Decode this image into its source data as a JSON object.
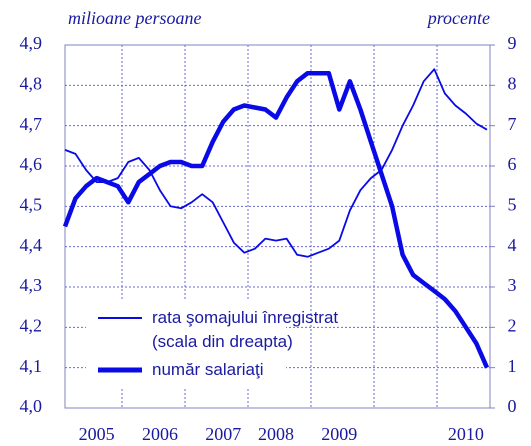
{
  "chart_data": {
    "type": "line",
    "y_label": "milioane persoane",
    "y2_label": "procente",
    "categories": [
      null,
      null,
      null,
      "2005",
      null,
      null,
      null,
      null,
      null,
      "2006",
      null,
      null,
      null,
      null,
      null,
      "2007",
      null,
      null,
      null,
      null,
      "2008",
      null,
      null,
      null,
      null,
      null,
      "2009",
      null,
      null,
      null,
      null,
      null,
      null,
      null,
      null,
      null,
      null,
      null,
      "2010",
      null,
      null
    ],
    "series": [
      {
        "name": "rata şomajului înregistrat (scala din dreapta)",
        "color": "#0a0ae6",
        "axis": "y2",
        "width": "thin",
        "values": [
          6.4,
          6.3,
          5.9,
          5.6,
          5.6,
          5.7,
          6.1,
          6.2,
          5.9,
          5.4,
          5.0,
          4.95,
          5.1,
          5.3,
          5.1,
          4.6,
          4.1,
          3.85,
          3.95,
          4.2,
          4.15,
          4.2,
          3.8,
          3.75,
          3.85,
          3.95,
          4.15,
          4.9,
          5.4,
          5.7,
          5.9,
          6.4,
          7.0,
          7.5,
          8.1,
          8.4,
          7.8,
          7.5,
          7.3,
          7.05,
          6.9
        ]
      },
      {
        "name": "număr salariaţi",
        "color": "#0a0ae6",
        "axis": "y",
        "width": "thick",
        "values": [
          4.45,
          4.52,
          4.55,
          4.57,
          4.56,
          4.55,
          4.51,
          4.56,
          4.58,
          4.6,
          4.61,
          4.61,
          4.6,
          4.6,
          4.66,
          4.71,
          4.74,
          4.75,
          4.745,
          4.74,
          4.72,
          4.77,
          4.81,
          4.83,
          4.83,
          4.83,
          4.74,
          4.81,
          4.74,
          4.66,
          4.58,
          4.5,
          4.38,
          4.33,
          4.31,
          4.29,
          4.27,
          4.24,
          4.2,
          4.16,
          4.1
        ]
      }
    ],
    "ylim": [
      4.0,
      4.9
    ],
    "yticks": [
      {
        "value": 4.0,
        "label": "4,0"
      },
      {
        "value": 4.1,
        "label": "4,1"
      },
      {
        "value": 4.2,
        "label": "4,2"
      },
      {
        "value": 4.3,
        "label": "4,3"
      },
      {
        "value": 4.4,
        "label": "4,4"
      },
      {
        "value": 4.5,
        "label": "4,5"
      },
      {
        "value": 4.6,
        "label": "4,6"
      },
      {
        "value": 4.7,
        "label": "4,7"
      },
      {
        "value": 4.8,
        "label": "4,8"
      },
      {
        "value": 4.9,
        "label": "4,9"
      }
    ],
    "y2lim": [
      0,
      9
    ],
    "y2ticks": [
      0,
      1,
      2,
      3,
      4,
      5,
      6,
      7,
      8,
      9
    ],
    "grid": true
  }
}
